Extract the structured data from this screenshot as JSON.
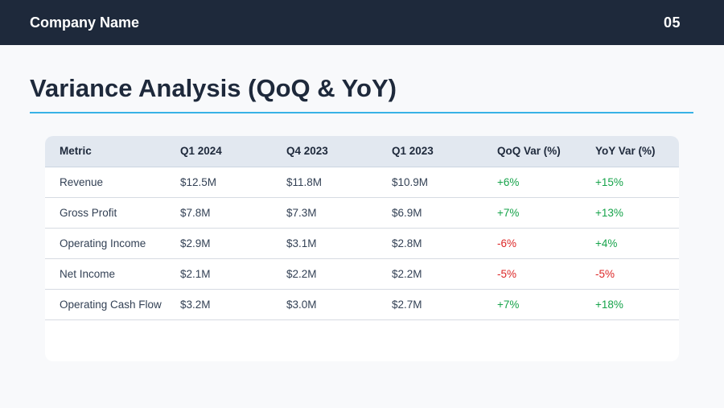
{
  "header": {
    "company_name": "Company Name",
    "page_number": "05"
  },
  "title": "Variance Analysis (QoQ & YoY)",
  "table": {
    "columns": [
      "Metric",
      "Q1 2024",
      "Q4 2023",
      "Q1 2023",
      "QoQ Var (%)",
      "YoY Var (%)"
    ],
    "rows": [
      [
        "Revenue",
        "$12.5M",
        "$11.8M",
        "$10.9M",
        "+6%",
        "+15%"
      ],
      [
        "Gross Profit",
        "$7.8M",
        "$7.3M",
        "$6.9M",
        "+7%",
        "+13%"
      ],
      [
        "Operating Income",
        "$2.9M",
        "$3.1M",
        "$2.8M",
        "-6%",
        "+4%"
      ],
      [
        "Net Income",
        "$2.1M",
        "$2.2M",
        "$2.2M",
        "-5%",
        "-5%"
      ],
      [
        "Operating Cash Flow",
        "$3.2M",
        "$3.0M",
        "$2.7M",
        "+7%",
        "+18%"
      ]
    ]
  },
  "colors": {
    "header_bg": "#1e293b",
    "accent_rule": "#38b2e6",
    "positive": "#16a34a",
    "negative": "#dc2626"
  }
}
